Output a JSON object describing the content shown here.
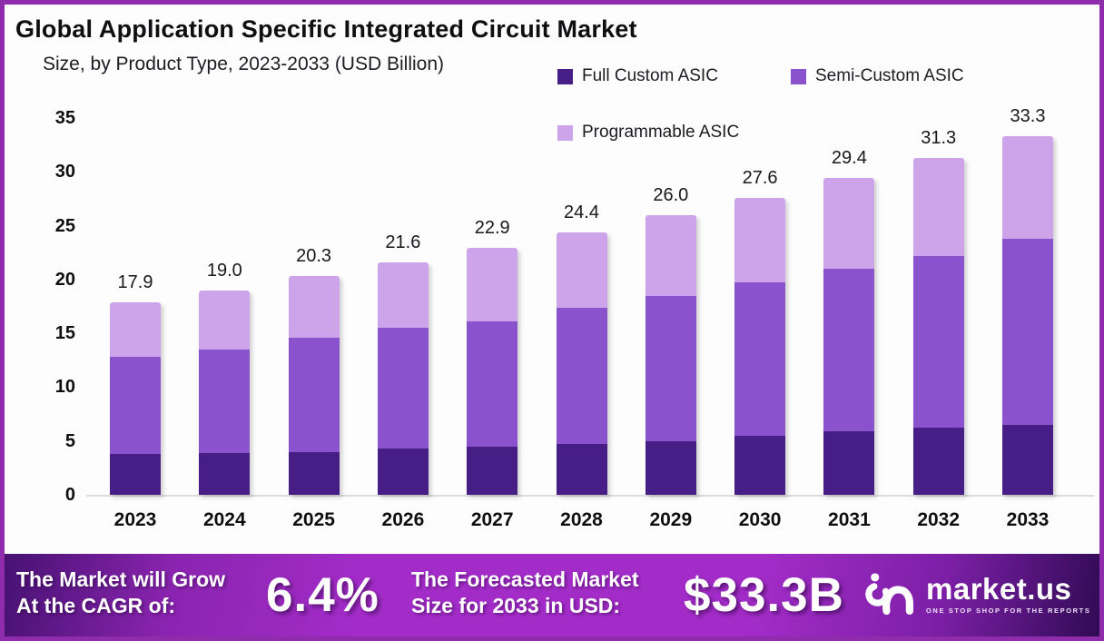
{
  "chart_data": {
    "type": "bar",
    "stacked": true,
    "title": "Global Application Specific Integrated Circuit Market",
    "subtitle": "Size, by Product Type, 2023-2033 (USD Billion)",
    "categories": [
      "2023",
      "2024",
      "2025",
      "2026",
      "2027",
      "2028",
      "2029",
      "2030",
      "2031",
      "2032",
      "2033"
    ],
    "series": [
      {
        "name": "Full Custom ASIC",
        "color": "#471e85",
        "values": [
          3.8,
          3.9,
          4.0,
          4.3,
          4.5,
          4.7,
          5.0,
          5.5,
          5.9,
          6.2,
          6.5
        ]
      },
      {
        "name": "Semi-Custom ASIC",
        "color": "#8a52cc",
        "values": [
          9.0,
          9.6,
          10.6,
          11.2,
          11.6,
          12.7,
          13.5,
          14.2,
          15.1,
          16.0,
          17.3
        ]
      },
      {
        "name": "Programmable ASIC",
        "color": "#cda3e9",
        "values": [
          5.1,
          5.5,
          5.7,
          6.1,
          6.8,
          7.0,
          7.5,
          7.9,
          8.4,
          9.1,
          9.5
        ]
      }
    ],
    "totals": [
      17.9,
      19.0,
      20.3,
      21.6,
      22.9,
      24.4,
      26.0,
      27.6,
      29.4,
      31.3,
      33.3
    ],
    "yticks": [
      0,
      5,
      10,
      15,
      20,
      25,
      30,
      35
    ],
    "ylim": [
      0,
      35
    ],
    "grid": false,
    "legend_position": "top-right"
  },
  "banner": {
    "cagr_label_line1": "The Market will Grow",
    "cagr_label_line2": "At the CAGR of:",
    "cagr_value": "6.4%",
    "forecast_label_line1": "The Forecasted Market",
    "forecast_label_line2": "Size for 2033 in USD:",
    "forecast_value": "$33.3B",
    "logo_text": "market.us",
    "logo_tagline": "ONE STOP SHOP FOR THE REPORTS"
  },
  "colors": {
    "frame_border": "#8e2cab",
    "banner_bright": "#a32cc8",
    "banner_dark_left": "#451170",
    "banner_dark_right": "#2e0a52",
    "axis_line": "#dcdcdc"
  }
}
